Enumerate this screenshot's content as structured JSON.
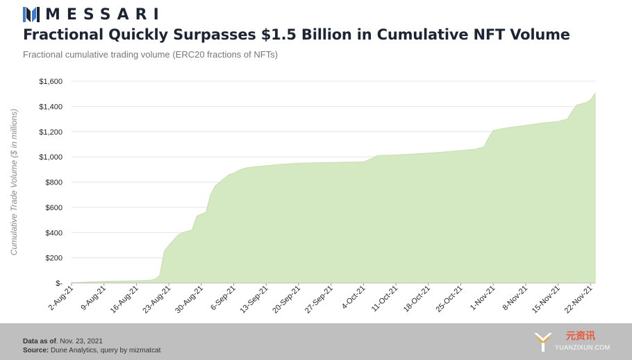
{
  "brand": {
    "name": "MESSARI",
    "color": "#1d2433",
    "logo_icon": "messari-logo-icon"
  },
  "title": "Fractional Quickly Surpasses $1.5 Billion in Cumulative NFT Volume",
  "subtitle": "Fractional cumulative trading volume (ERC20 fractions of NFTs)",
  "footer": {
    "data_as_of_label": "Data as of",
    "data_as_of_value": ". Nov. 23, 2021",
    "source_label": "Source:",
    "source_value": " Dune Analytics, query by mizmatcat",
    "background": "#bfbfbf"
  },
  "watermark": {
    "cn": "元资讯",
    "en": "YUANZIXUN.COM",
    "icon": "yuanzixun-logo-icon"
  },
  "chart_data": {
    "type": "area",
    "title": "Fractional Quickly Surpasses $1.5 Billion in Cumulative NFT Volume",
    "subtitle": "Fractional cumulative trading volume (ERC20 fractions of NFTs)",
    "xlabel": "",
    "ylabel": "Cumulative Trade Volume ($ in millions)",
    "ylim": [
      0,
      1600
    ],
    "yticks": [
      0,
      200,
      400,
      600,
      800,
      1000,
      1200,
      1400,
      1600
    ],
    "ytick_labels": [
      "$-",
      "$200",
      "$400",
      "$600",
      "$800",
      "$1,000",
      "$1,200",
      "$1,400",
      "$1,600"
    ],
    "xtick_labels": [
      "2-Aug-21",
      "9-Aug-21",
      "16-Aug-21",
      "23-Aug-21",
      "30-Aug-21",
      "6-Sep-21",
      "13-Sep-21",
      "20-Sep-21",
      "27-Sep-21",
      "4-Oct-21",
      "11-Oct-21",
      "18-Oct-21",
      "25-Oct-21",
      "1-Nov-21",
      "8-Nov-21",
      "15-Nov-21",
      "22-Nov-21"
    ],
    "grid": "horizontal",
    "fill_color": "#d4e8c2",
    "series": [
      {
        "x": [
          "2021-08-02",
          "2021-08-04",
          "2021-08-06",
          "2021-08-09",
          "2021-08-12",
          "2021-08-16",
          "2021-08-19",
          "2021-08-20",
          "2021-08-21",
          "2021-08-22",
          "2021-08-23",
          "2021-08-24",
          "2021-08-25",
          "2021-08-26",
          "2021-08-27",
          "2021-08-28",
          "2021-08-29",
          "2021-08-30",
          "2021-08-31",
          "2021-09-01",
          "2021-09-02",
          "2021-09-03",
          "2021-09-04",
          "2021-09-05",
          "2021-09-06",
          "2021-09-07",
          "2021-09-08",
          "2021-09-09",
          "2021-09-10",
          "2021-09-13",
          "2021-09-16",
          "2021-09-20",
          "2021-09-27",
          "2021-10-04",
          "2021-10-06",
          "2021-10-07",
          "2021-10-11",
          "2021-10-18",
          "2021-10-22",
          "2021-10-25",
          "2021-10-28",
          "2021-10-30",
          "2021-10-31",
          "2021-11-01",
          "2021-11-04",
          "2021-11-08",
          "2021-11-12",
          "2021-11-15",
          "2021-11-16",
          "2021-11-17",
          "2021-11-18",
          "2021-11-19",
          "2021-11-21",
          "2021-11-22",
          "2021-11-23"
        ],
        "values": [
          3,
          5,
          8,
          12,
          15,
          18,
          22,
          30,
          60,
          250,
          300,
          340,
          380,
          400,
          410,
          420,
          530,
          545,
          560,
          700,
          770,
          800,
          830,
          860,
          870,
          890,
          905,
          915,
          920,
          930,
          940,
          950,
          955,
          960,
          990,
          1010,
          1015,
          1030,
          1040,
          1050,
          1060,
          1080,
          1150,
          1210,
          1230,
          1250,
          1270,
          1280,
          1290,
          1300,
          1360,
          1410,
          1430,
          1450,
          1505
        ]
      }
    ]
  }
}
